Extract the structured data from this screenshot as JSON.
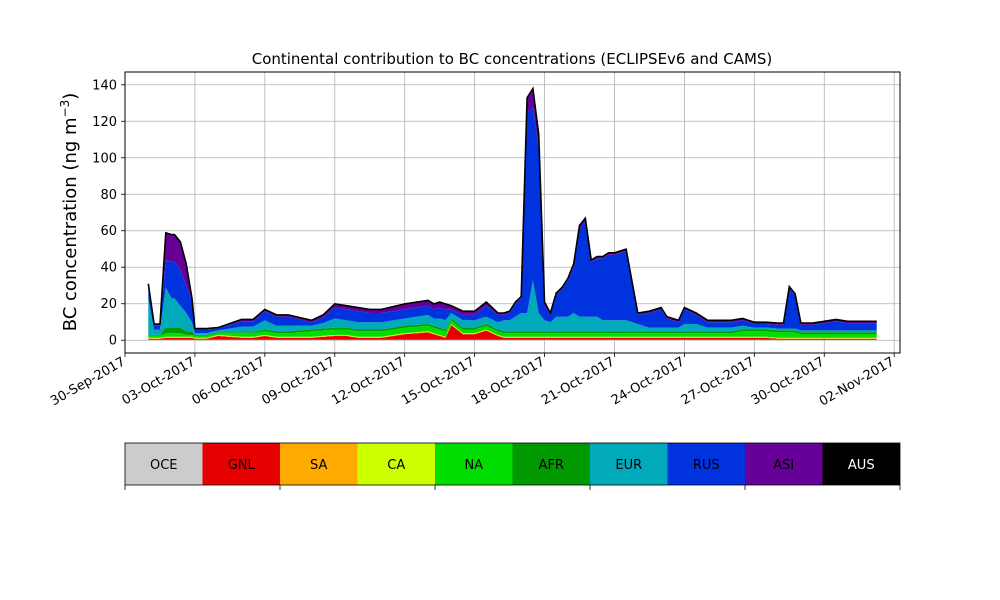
{
  "chart_data": {
    "type": "area",
    "title": "Continental contribution to BC concentrations (ECLIPSEv6 and CAMS)",
    "ylabel": "BC concentration (ng m",
    "ylabel_sup": "−3",
    "ylabel_close": ")",
    "xlabel": "",
    "ylim": [
      -7,
      147
    ],
    "xlim": [
      "2017-09-30",
      "2017-11-02T06:00"
    ],
    "grid": true,
    "x_ticks": [
      "30-Sep-2017",
      "03-Oct-2017",
      "06-Oct-2017",
      "09-Oct-2017",
      "12-Oct-2017",
      "15-Oct-2017",
      "18-Oct-2017",
      "21-Oct-2017",
      "24-Oct-2017",
      "27-Oct-2017",
      "30-Oct-2017",
      "02-Nov-2017"
    ],
    "y_ticks": [
      0,
      20,
      40,
      60,
      80,
      100,
      120,
      140
    ],
    "x": [
      "2017-10-01",
      "2017-10-01T06:00",
      "2017-10-01T12:00",
      "2017-10-01T18:00",
      "2017-10-02",
      "2017-10-02T03:00",
      "2017-10-02T09:00",
      "2017-10-02T15:00",
      "2017-10-02T21:00",
      "2017-10-03",
      "2017-10-03T06:00",
      "2017-10-03T12:00",
      "2017-10-04",
      "2017-10-05",
      "2017-10-05T12:00",
      "2017-10-06",
      "2017-10-06T12:00",
      "2017-10-07",
      "2017-10-08",
      "2017-10-08T12:00",
      "2017-10-09",
      "2017-10-09T12:00",
      "2017-10-10",
      "2017-10-10T12:00",
      "2017-10-11",
      "2017-10-12",
      "2017-10-13",
      "2017-10-13T06:00",
      "2017-10-13T12:00",
      "2017-10-13T18:00",
      "2017-10-14",
      "2017-10-14T12:00",
      "2017-10-15",
      "2017-10-15T12:00",
      "2017-10-16",
      "2017-10-16T06:00",
      "2017-10-16T12:00",
      "2017-10-16T18:00",
      "2017-10-17",
      "2017-10-17T06:00",
      "2017-10-17T12:00",
      "2017-10-17T18:00",
      "2017-10-18",
      "2017-10-18T06:00",
      "2017-10-18T12:00",
      "2017-10-18T18:00",
      "2017-10-19",
      "2017-10-19T06:00",
      "2017-10-19T12:00",
      "2017-10-19T18:00",
      "2017-10-20",
      "2017-10-20T06:00",
      "2017-10-20T12:00",
      "2017-10-20T18:00",
      "2017-10-21",
      "2017-10-21T12:00",
      "2017-10-22",
      "2017-10-22T12:00",
      "2017-10-23",
      "2017-10-23T06:00",
      "2017-10-23T12:00",
      "2017-10-23T18:00",
      "2017-10-24",
      "2017-10-24T12:00",
      "2017-10-25",
      "2017-10-25T12:00",
      "2017-10-26",
      "2017-10-26T12:00",
      "2017-10-27",
      "2017-10-27T12:00",
      "2017-10-28",
      "2017-10-28T06:00",
      "2017-10-28T12:00",
      "2017-10-28T18:00",
      "2017-10-29",
      "2017-10-29T12:00",
      "2017-10-30",
      "2017-10-30T12:00",
      "2017-10-31",
      "2017-10-31T12:00",
      "2017-11-01",
      "2017-11-01T06:00"
    ],
    "series": [
      {
        "name": "OCE",
        "color": "#cccccc",
        "values": [
          0.3,
          0.3,
          0.3,
          0.3,
          0.3,
          0.3,
          0.3,
          0.3,
          0.3,
          0.3,
          0.3,
          0.3,
          0.3,
          0.3,
          0.3,
          0.3,
          0.3,
          0.3,
          0.3,
          0.3,
          0.3,
          0.3,
          0.3,
          0.3,
          0.3,
          0.3,
          0.3,
          0.3,
          0.3,
          0.3,
          0.3,
          0.3,
          0.3,
          0.3,
          0.3,
          0.3,
          0.3,
          0.3,
          0.3,
          0.3,
          0.3,
          0.3,
          0.3,
          0.3,
          0.3,
          0.3,
          0.3,
          0.3,
          0.3,
          0.3,
          0.3,
          0.3,
          0.3,
          0.3,
          0.3,
          0.3,
          0.3,
          0.3,
          0.3,
          0.3,
          0.3,
          0.3,
          0.3,
          0.3,
          0.3,
          0.3,
          0.3,
          0.3,
          0.3,
          0.3,
          0.3,
          0.3,
          0.3,
          0.3,
          0.3,
          0.3,
          0.3,
          0.3,
          0.3,
          0.3,
          0.3,
          0.3
        ]
      },
      {
        "name": "GNL",
        "color": "#e60000",
        "values": [
          0.5,
          0.5,
          0.5,
          1,
          1,
          1,
          1,
          1,
          1,
          0.5,
          0.5,
          0.5,
          2,
          1,
          1,
          2,
          1,
          1,
          1,
          1.5,
          2,
          2,
          1,
          1,
          1,
          3,
          4,
          3,
          2,
          1,
          8,
          3,
          3,
          5,
          2,
          1,
          1,
          1,
          1,
          1,
          1,
          1,
          1,
          1,
          1,
          1,
          1,
          1,
          1,
          1,
          1,
          1,
          1,
          1,
          1,
          1,
          1,
          1,
          1,
          1,
          1,
          1,
          1,
          1,
          1,
          1,
          1,
          1,
          1,
          1,
          0.5,
          0.5,
          0.5,
          0.5,
          0.5,
          0.5,
          0.5,
          0.5,
          0.5,
          0.5,
          0.5,
          0.5
        ]
      },
      {
        "name": "SA",
        "color": "#ffaa00",
        "values": [
          0.3,
          0.3,
          0.3,
          0.3,
          0.3,
          0.3,
          0.3,
          0.3,
          0.3,
          0.3,
          0.3,
          0.3,
          0.3,
          0.3,
          0.3,
          0.3,
          0.3,
          0.3,
          0.3,
          0.3,
          0.3,
          0.3,
          0.3,
          0.3,
          0.3,
          0.3,
          0.3,
          0.3,
          0.3,
          0.3,
          0.3,
          0.3,
          0.3,
          0.3,
          0.3,
          0.3,
          0.3,
          0.3,
          0.3,
          0.3,
          0.3,
          0.3,
          0.3,
          0.3,
          0.3,
          0.3,
          0.3,
          0.3,
          0.3,
          0.3,
          0.3,
          0.3,
          0.3,
          0.3,
          0.3,
          0.3,
          0.3,
          0.3,
          0.3,
          0.3,
          0.3,
          0.3,
          0.3,
          0.3,
          0.3,
          0.3,
          0.3,
          0.3,
          0.3,
          0.3,
          0.3,
          0.3,
          0.3,
          0.3,
          0.3,
          0.3,
          0.3,
          0.3,
          0.3,
          0.3,
          0.3,
          0.3
        ]
      },
      {
        "name": "CA",
        "color": "#ccff00",
        "values": [
          0.3,
          0.3,
          0.3,
          0.3,
          0.3,
          0.3,
          0.3,
          0.3,
          0.3,
          0.3,
          0.3,
          0.3,
          0.3,
          0.3,
          0.3,
          0.3,
          0.3,
          0.3,
          0.3,
          0.3,
          0.3,
          0.3,
          0.3,
          0.3,
          0.3,
          0.3,
          0.3,
          0.3,
          0.3,
          0.3,
          0.3,
          0.3,
          0.3,
          0.3,
          0.3,
          0.3,
          0.3,
          0.3,
          0.3,
          0.3,
          0.3,
          0.3,
          0.3,
          0.3,
          0.3,
          0.3,
          0.3,
          0.3,
          0.3,
          0.3,
          0.3,
          0.3,
          0.3,
          0.3,
          0.3,
          0.3,
          0.3,
          0.3,
          0.3,
          0.3,
          0.3,
          0.3,
          0.3,
          0.3,
          0.3,
          0.3,
          0.3,
          0.3,
          0.3,
          0.3,
          0.3,
          0.3,
          0.3,
          0.3,
          0.3,
          0.3,
          0.3,
          0.3,
          0.3,
          0.3,
          0.3,
          0.3
        ]
      },
      {
        "name": "NA",
        "color": "#00dd00",
        "values": [
          1,
          1,
          1,
          2,
          2,
          2,
          2,
          1,
          1,
          1,
          1,
          1,
          1,
          2,
          2,
          2,
          2,
          2,
          3,
          3,
          3,
          3,
          3,
          3,
          3,
          3,
          3,
          3,
          3,
          3,
          2,
          2,
          2,
          2,
          2,
          2,
          2,
          2,
          2,
          2,
          2,
          2,
          2,
          2,
          2,
          2,
          2,
          2,
          2,
          2,
          2,
          2,
          2,
          2,
          2,
          2,
          2,
          2,
          2,
          2,
          2,
          2,
          2,
          2,
          2,
          2,
          2,
          3,
          3,
          3,
          3,
          3,
          3,
          3,
          2,
          2,
          2,
          2,
          2,
          2,
          2,
          2
        ]
      },
      {
        "name": "AFR",
        "color": "#009900",
        "values": [
          0.5,
          0.5,
          0.5,
          3,
          3,
          3,
          3,
          2,
          2,
          0.5,
          0.5,
          0.5,
          0.5,
          0.5,
          0.5,
          1,
          1,
          1,
          1,
          1,
          1,
          1,
          1,
          1,
          1,
          1,
          1,
          1,
          1,
          1,
          1,
          1,
          1,
          1,
          1,
          1,
          1,
          1,
          1,
          1,
          1,
          1,
          1,
          1,
          1,
          1,
          1,
          1,
          1,
          1,
          1,
          1,
          1,
          1,
          1,
          1,
          1,
          1,
          1,
          1,
          1,
          1,
          1,
          1,
          1,
          1,
          1,
          1,
          1,
          1,
          1,
          1,
          1,
          1,
          1,
          1,
          1,
          1,
          1,
          1,
          1,
          1
        ]
      },
      {
        "name": "EUR",
        "color": "#00aabb",
        "values": [
          20,
          3,
          3,
          22,
          16,
          16,
          12,
          10,
          5,
          1,
          1,
          1,
          1,
          3,
          3,
          5,
          3,
          3,
          2,
          3,
          5,
          4,
          4,
          4,
          4,
          4,
          5,
          4,
          5,
          5,
          3,
          4,
          4,
          4,
          4,
          6,
          6,
          8,
          10,
          10,
          28,
          10,
          6,
          5,
          8,
          8,
          8,
          10,
          8,
          8,
          8,
          8,
          6,
          6,
          6,
          6,
          4,
          2,
          2,
          2,
          2,
          2,
          4,
          4,
          2,
          2,
          2,
          2,
          1,
          1,
          1,
          1,
          1,
          1,
          1,
          1,
          1,
          1,
          1,
          1,
          1,
          1
        ]
      },
      {
        "name": "RUS",
        "color": "#0033dd",
        "values": [
          6,
          2,
          2,
          15,
          20,
          20,
          20,
          15,
          12,
          2,
          2,
          2,
          1,
          3,
          3,
          5,
          5,
          5,
          2,
          3,
          6,
          6,
          6,
          5,
          5,
          5,
          5,
          5,
          6,
          6,
          2,
          3,
          3,
          6,
          4,
          3,
          4,
          7,
          8,
          110,
          95,
          90,
          8,
          4,
          12,
          15,
          20,
          25,
          48,
          52,
          30,
          32,
          34,
          36,
          36,
          38,
          5,
          8,
          10,
          5,
          4,
          3,
          8,
          5,
          3,
          3,
          3,
          3,
          2,
          2,
          2,
          2,
          22,
          18,
          3,
          3,
          4,
          5,
          4,
          4,
          4,
          4
        ]
      },
      {
        "name": "ASI",
        "color": "#660099",
        "values": [
          2,
          1,
          1,
          15,
          15,
          15,
          15,
          12,
          1,
          0.5,
          0.5,
          0.5,
          0.5,
          1,
          1,
          1,
          1,
          1,
          1,
          1.5,
          2,
          2,
          2,
          2,
          2,
          3,
          3,
          3,
          3,
          3,
          2,
          2,
          2,
          2,
          1,
          1,
          1,
          1,
          1,
          8,
          10,
          8,
          2,
          1,
          1,
          1,
          1,
          2,
          2,
          2,
          1,
          1,
          1,
          1,
          1,
          1,
          1,
          1,
          1,
          1,
          1,
          1,
          1,
          1,
          1,
          1,
          1,
          1,
          1,
          1,
          1,
          1,
          1,
          1,
          1,
          1,
          1,
          1,
          1,
          1,
          1,
          1
        ]
      },
      {
        "name": "AUS",
        "color": "#000000",
        "values": [
          0,
          0,
          0,
          0,
          0,
          0,
          0,
          0,
          0,
          0,
          0,
          0,
          0,
          0,
          0,
          0,
          0,
          0,
          0,
          0,
          0,
          0,
          0,
          0,
          0,
          0,
          0,
          0,
          0,
          0,
          0,
          0,
          0,
          0,
          0,
          0,
          0,
          0,
          0,
          0,
          0,
          0,
          0,
          0,
          0,
          0,
          0,
          0,
          0,
          0,
          0,
          0,
          0,
          0,
          0,
          0,
          0,
          0,
          0,
          0,
          0,
          0,
          0,
          0,
          0,
          0,
          0,
          0,
          0,
          0,
          0,
          0,
          0,
          0,
          0,
          0,
          0,
          0,
          0,
          0,
          0,
          0
        ]
      }
    ],
    "colorbar": {
      "labels": [
        "OCE",
        "GNL",
        "SA",
        "CA",
        "NA",
        "AFR",
        "EUR",
        "RUS",
        "ASI",
        "AUS"
      ],
      "colors": [
        "#cccccc",
        "#e60000",
        "#ffaa00",
        "#ccff00",
        "#00dd00",
        "#009900",
        "#00aabb",
        "#0033dd",
        "#660099",
        "#000000"
      ],
      "label_colors": [
        "#000000",
        "#000000",
        "#000000",
        "#000000",
        "#000000",
        "#000000",
        "#000000",
        "#000000",
        "#000000",
        "#ffffff"
      ]
    }
  }
}
